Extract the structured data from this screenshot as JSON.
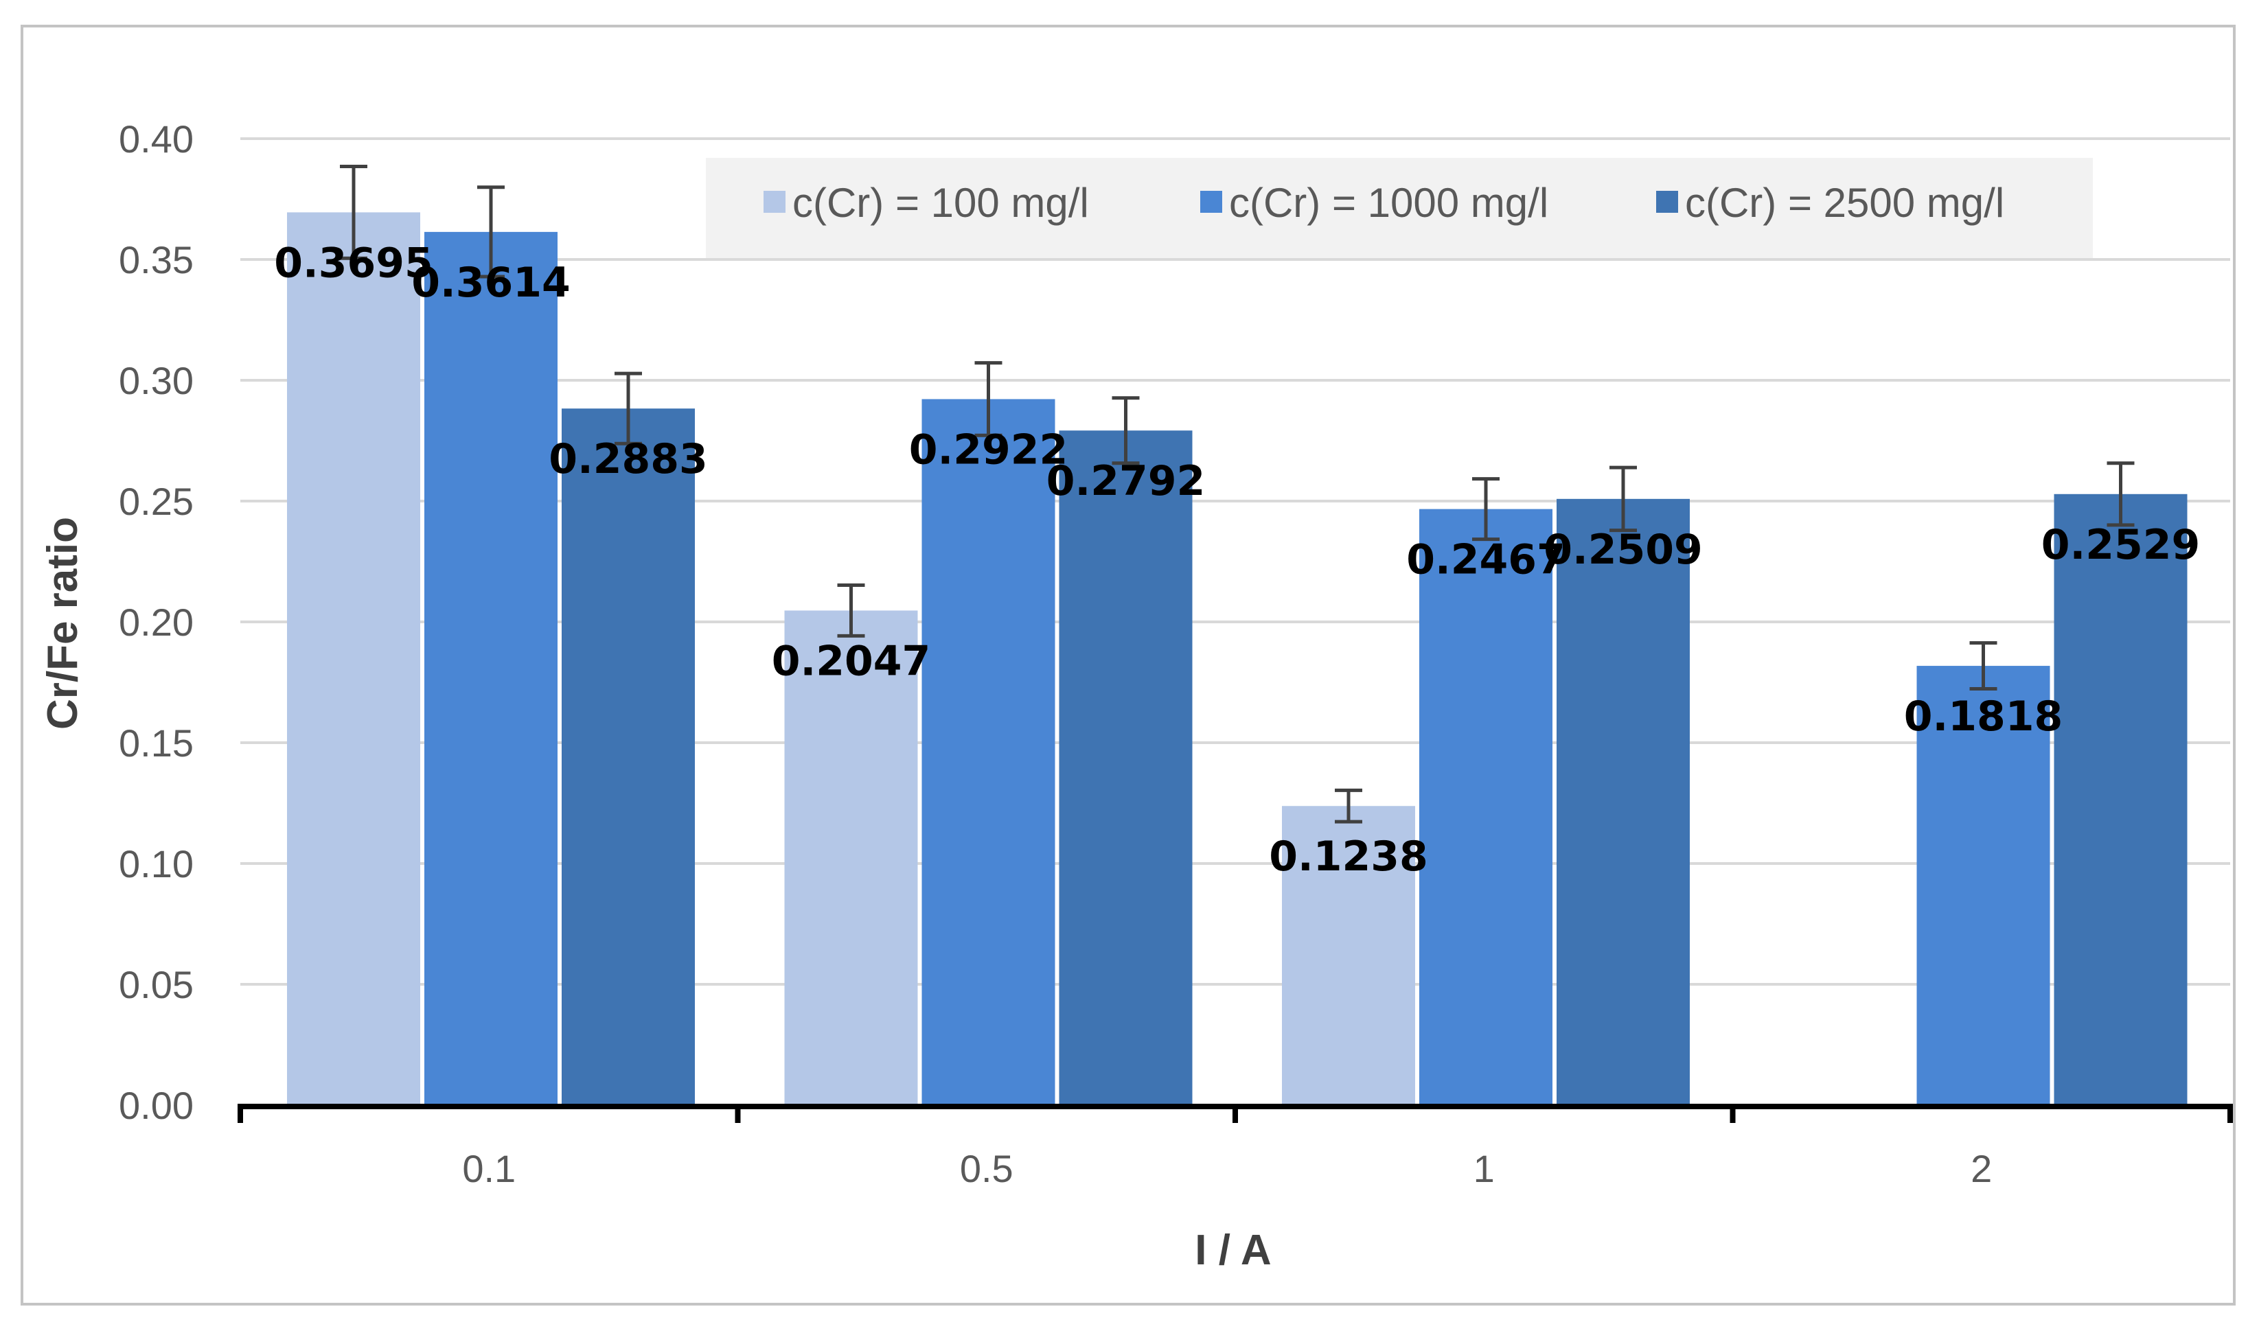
{
  "chart_data": {
    "type": "bar",
    "title": "",
    "xlabel": "I / A",
    "ylabel": "Cr/Fe ratio",
    "categories": [
      "0.1",
      "0.5",
      "1",
      "2"
    ],
    "ylim": [
      0,
      0.4
    ],
    "yticks": [
      "0.00",
      "0.05",
      "0.10",
      "0.15",
      "0.20",
      "0.25",
      "0.30",
      "0.35",
      "0.40"
    ],
    "grid": true,
    "legend_position": "top-right",
    "series": [
      {
        "name": "c(Cr) = 100 mg/l",
        "color": "#b4c7e7",
        "values": [
          0.3695,
          0.2047,
          0.1238,
          null
        ],
        "labels": [
          "0.3695",
          "0.2047",
          "0.1238",
          ""
        ],
        "errors": [
          0.019,
          0.0105,
          0.0065,
          null
        ]
      },
      {
        "name": "c(Cr) = 1000 mg/l",
        "color": "#4a86d4",
        "values": [
          0.3614,
          0.2922,
          0.2467,
          0.1818
        ],
        "labels": [
          "0.3614",
          "0.2922",
          "0.2467",
          "0.1818"
        ],
        "errors": [
          0.0185,
          0.015,
          0.0125,
          0.0095
        ]
      },
      {
        "name": "c(Cr) = 2500 mg/l",
        "color": "#3f74b2",
        "values": [
          0.2883,
          0.2792,
          0.2509,
          0.2529
        ],
        "labels": [
          "0.2883",
          "0.2792",
          "0.2509",
          "0.2529"
        ],
        "errors": [
          0.0145,
          0.0135,
          0.013,
          0.0128
        ]
      }
    ]
  }
}
